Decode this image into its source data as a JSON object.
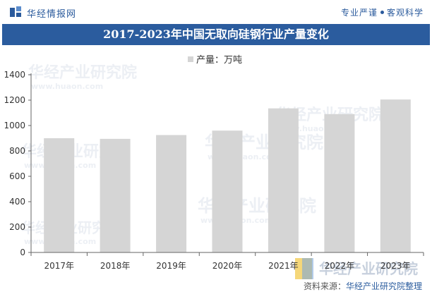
{
  "header": {
    "brand": "华经情报网",
    "site_a": "专业严谨",
    "site_b": "客观科学"
  },
  "footer": {
    "source_label": "资料来源：",
    "source_value": "华经产业研究院整理"
  },
  "watermark": {
    "text": "华经产业研究院",
    "url": "www.huaon.com"
  },
  "colors": {
    "title_bar": "#2b5c9e",
    "bar": "#d5d5d5",
    "brand": "#2a5a9c"
  },
  "chart_data": {
    "type": "bar",
    "title": "2017-2023年中国无取向硅钢行业产量变化",
    "categories": [
      "2017年",
      "2018年",
      "2019年",
      "2020年",
      "2021年",
      "2022年",
      "2023年"
    ],
    "series": [
      {
        "name": "产量：万吨",
        "values": [
          900,
          895,
          925,
          960,
          1135,
          1090,
          1205
        ]
      }
    ],
    "yticks": [
      0,
      200,
      400,
      600,
      800,
      1000,
      1200,
      1400
    ],
    "ylim": [
      0,
      1400
    ],
    "xlabel": "",
    "ylabel": "",
    "grid": false,
    "legend": "top-center"
  }
}
